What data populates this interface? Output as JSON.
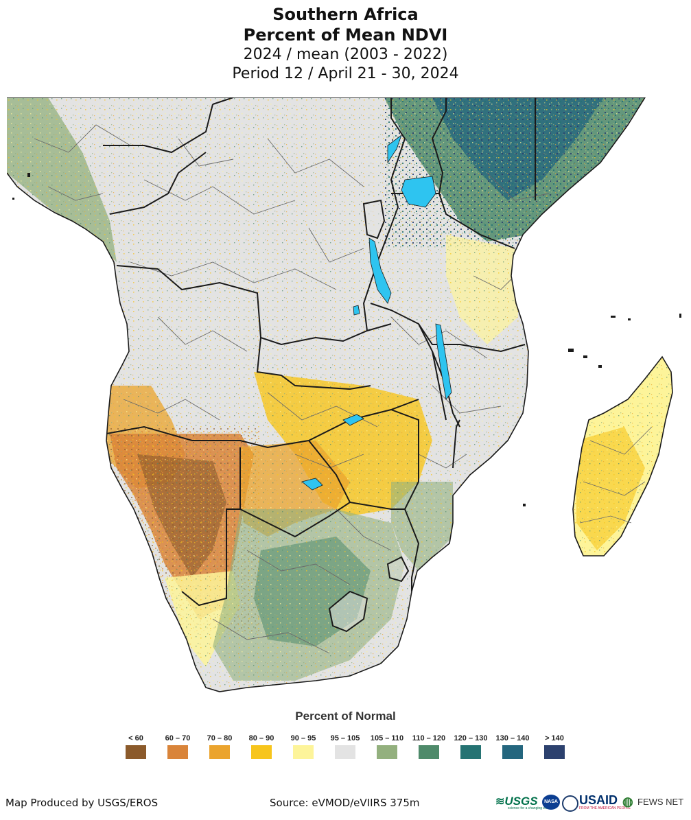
{
  "title": {
    "line1": "Southern Africa",
    "line2": "Percent of Mean NDVI",
    "line3": "2024 / mean (2003 - 2022)",
    "line4": "Period 12 / April 21 - 30, 2024"
  },
  "legend": {
    "title": "Percent of Normal",
    "items": [
      {
        "label": "< 60",
        "color": "#8b5a2b"
      },
      {
        "label": "60 – 70",
        "color": "#d9843a"
      },
      {
        "label": "70 – 80",
        "color": "#eba42e"
      },
      {
        "label": "80 – 90",
        "color": "#f7c51c"
      },
      {
        "label": "90 – 95",
        "color": "#fdf49a"
      },
      {
        "label": "95 – 105",
        "color": "#e3e3e3"
      },
      {
        "label": "105 – 110",
        "color": "#93b07e"
      },
      {
        "label": "110 – 120",
        "color": "#4e8a6a"
      },
      {
        "label": "120 – 130",
        "color": "#257373"
      },
      {
        "label": "130 – 140",
        "color": "#24667e"
      },
      {
        "label": "> 140",
        "color": "#2c416e"
      }
    ]
  },
  "footer": {
    "produced_by": "Map Produced by USGS/EROS",
    "source": "Source: eVMOD/eVIIRS 375m"
  },
  "logos": {
    "usgs": "USGS",
    "usgs_tagline": "science for a changing world",
    "nasa": "NASA",
    "usaid": "USAID",
    "usaid_tagline": "FROM THE AMERICAN PEOPLE",
    "fewsnet": "FEWS NET"
  },
  "colors": {
    "water": "#2ec4f0",
    "border": "#1a1a1a",
    "admin": "#6a6a6a"
  }
}
